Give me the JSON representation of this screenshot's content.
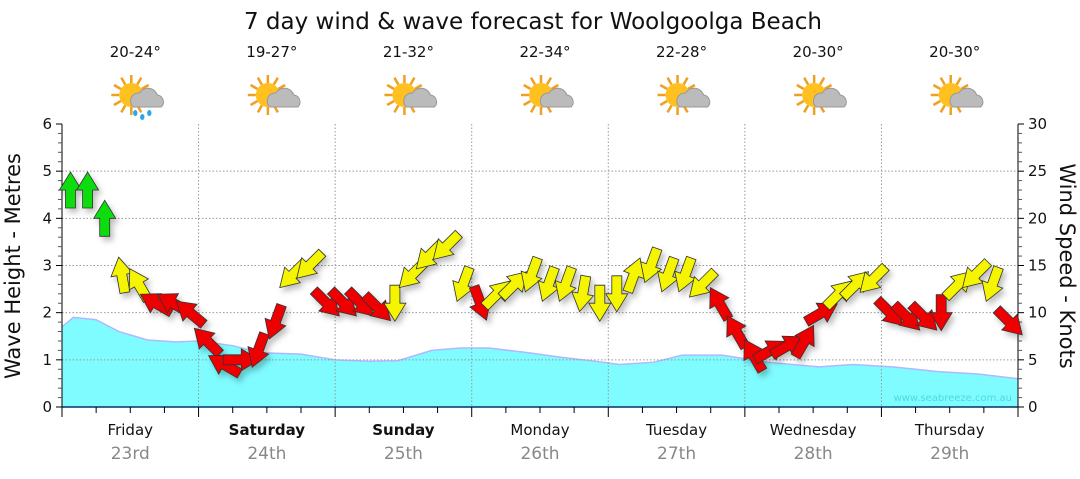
{
  "chart_data": {
    "type": "area",
    "title": "7 day wind & wave forecast for Woolgoolga Beach",
    "ylabel_left": "Wave Height - Metres",
    "ylabel_right": "Wind Speed - Knots",
    "ylim_left": [
      0,
      6
    ],
    "ylim_right": [
      0,
      30
    ],
    "yticks_left": [
      "0",
      "1",
      "2",
      "3",
      "4",
      "5",
      "6"
    ],
    "yticks_right": [
      "0",
      "5",
      "10",
      "15",
      "20",
      "25",
      "30"
    ],
    "grid": true,
    "watermark": "www.seabreeze.com.au",
    "days": [
      {
        "day": "Friday",
        "date": "23rd",
        "temp": "20-24°",
        "weather": "sun-cloud-rain-icon",
        "bold": false
      },
      {
        "day": "Saturday",
        "date": "24th",
        "temp": "19-27°",
        "weather": "sun-cloud-icon",
        "bold": true
      },
      {
        "day": "Sunday",
        "date": "25th",
        "temp": "21-32°",
        "weather": "sun-cloud-icon",
        "bold": true
      },
      {
        "day": "Monday",
        "date": "26th",
        "temp": "22-34°",
        "weather": "sun-cloud-icon",
        "bold": false
      },
      {
        "day": "Tuesday",
        "date": "27th",
        "temp": "22-28°",
        "weather": "sun-cloud-icon",
        "bold": false
      },
      {
        "day": "Wednesday",
        "date": "28th",
        "temp": "20-30°",
        "weather": "sun-cloud-icon",
        "bold": false
      },
      {
        "day": "Thursday",
        "date": "29th",
        "temp": "20-30°",
        "weather": "sun-cloud-icon",
        "bold": false
      }
    ],
    "wave_series": {
      "name": "Wave Height (m)",
      "hours": [
        0,
        2,
        6,
        10,
        15,
        20,
        24,
        30,
        35,
        42,
        48,
        54,
        59,
        65,
        70,
        75,
        82,
        88,
        93,
        98,
        104,
        109,
        116,
        124,
        133,
        139,
        146,
        154,
        161,
        168
      ],
      "values": [
        1.7,
        1.9,
        1.85,
        1.6,
        1.42,
        1.38,
        1.4,
        1.3,
        1.15,
        1.12,
        1.0,
        0.97,
        0.98,
        1.2,
        1.25,
        1.25,
        1.15,
        1.05,
        0.98,
        0.9,
        0.95,
        1.1,
        1.1,
        0.95,
        0.85,
        0.9,
        0.85,
        0.75,
        0.7,
        0.6
      ]
    },
    "wind_series": {
      "name": "Wind Speed (knots)",
      "interval_hours": 3,
      "speeds": [
        23,
        23,
        20,
        14,
        13,
        11,
        11,
        10,
        7,
        4.5,
        5,
        6,
        9,
        14,
        15,
        11,
        11,
        11,
        10.5,
        11,
        14,
        16,
        17,
        13,
        11,
        12,
        13,
        14,
        13,
        13,
        12,
        11,
        12,
        14,
        15,
        14,
        14,
        13,
        11,
        8,
        5.5,
        6,
        6.5,
        7,
        10,
        12,
        13,
        13.5,
        10,
        9.5,
        9.5,
        10,
        13,
        14,
        13,
        9
      ],
      "arrow_direction_deg": [
        0,
        0,
        0,
        350,
        330,
        300,
        300,
        310,
        315,
        300,
        90,
        200,
        200,
        225,
        225,
        135,
        135,
        135,
        135,
        180,
        225,
        225,
        225,
        200,
        160,
        45,
        45,
        200,
        200,
        200,
        190,
        180,
        180,
        20,
        200,
        200,
        200,
        225,
        330,
        330,
        330,
        60,
        60,
        30,
        60,
        45,
        45,
        225,
        135,
        135,
        135,
        180,
        45,
        225,
        200,
        135
      ],
      "colors": [
        "green",
        "green",
        "green",
        "yellow",
        "yellow",
        "red",
        "red",
        "red",
        "red",
        "red",
        "red",
        "red",
        "red",
        "yellow",
        "yellow",
        "red",
        "red",
        "red",
        "red",
        "yellow",
        "yellow",
        "yellow",
        "yellow",
        "yellow",
        "red",
        "yellow",
        "yellow",
        "yellow",
        "yellow",
        "yellow",
        "yellow",
        "yellow",
        "yellow",
        "yellow",
        "yellow",
        "yellow",
        "yellow",
        "yellow",
        "red",
        "red",
        "red",
        "red",
        "red",
        "red",
        "red",
        "yellow",
        "yellow",
        "yellow",
        "red",
        "red",
        "red",
        "red",
        "yellow",
        "yellow",
        "yellow",
        "red"
      ]
    },
    "palette": {
      "green": "#11dd11",
      "yellow": "#f5f500",
      "red": "#ee0000",
      "wave": "#7ffcff",
      "wave_line": "#b0b8ff"
    }
  }
}
